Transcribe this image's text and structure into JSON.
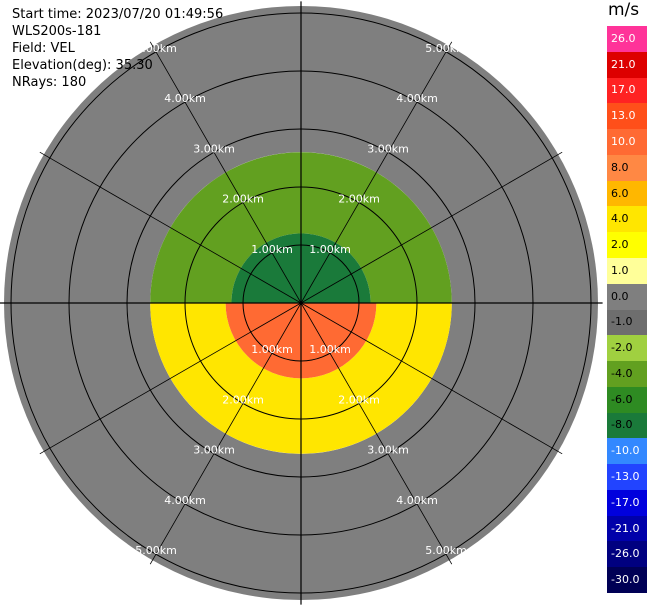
{
  "info": {
    "start_time": "Start time: 2023/07/20 01:49:56",
    "station": "WLS200s-181",
    "field": "Field: VEL",
    "elevation": "Elevation(deg): 35.30",
    "nrays": "NRays: 180"
  },
  "colorbar": {
    "unit": "m/s",
    "labels": [
      "26.0",
      "21.0",
      "17.0",
      "13.0",
      "10.0",
      "8.0",
      "6.0",
      "4.0",
      "2.0",
      "1.0",
      "0.0",
      "-1.0",
      "-2.0",
      "-4.0",
      "-6.0",
      "-8.0",
      "-10.0",
      "-13.0",
      "-17.0",
      "-21.0",
      "-26.0",
      "-30.0"
    ],
    "colors": [
      "#ff3399",
      "#dd0000",
      "#ff2222",
      "#ff4f1a",
      "#ff6a33",
      "#ff8844",
      "#ffb700",
      "#ffe600",
      "#ffff00",
      "#ffff99",
      "#7f7f7f",
      "#6e6e6e",
      "#a0d040",
      "#62a020",
      "#2e8b22",
      "#1a7a3a",
      "#3388ff",
      "#2244ff",
      "#0000dd",
      "#0000aa",
      "#000080",
      "#000055"
    ]
  },
  "chart_data": {
    "type": "ppi",
    "field": "VEL",
    "unit": "m/s",
    "range_rings_km": [
      1.0,
      2.0,
      3.0,
      4.0,
      5.0
    ],
    "ring_labels": [
      "1.00km",
      "2.00km",
      "3.00km",
      "4.00km",
      "5.00km"
    ],
    "nrays": 180,
    "elevation_deg": 35.3,
    "sectors": [
      {
        "az_from": 270,
        "az_to": 90,
        "range_km": [
          0.0,
          1.2
        ],
        "velocity": -8.0
      },
      {
        "az_from": 90,
        "az_to": 270,
        "range_km": [
          0.0,
          1.3
        ],
        "velocity": 10.0
      },
      {
        "az_from": 270,
        "az_to": 90,
        "range_km": [
          1.2,
          2.6
        ],
        "velocity": -4.0
      },
      {
        "az_from": 90,
        "az_to": 270,
        "range_km": [
          1.3,
          2.6
        ],
        "velocity": 4.0
      },
      {
        "az_from": 0,
        "az_to": 360,
        "range_km": [
          2.6,
          5.5
        ],
        "velocity": 0.0
      }
    ]
  }
}
